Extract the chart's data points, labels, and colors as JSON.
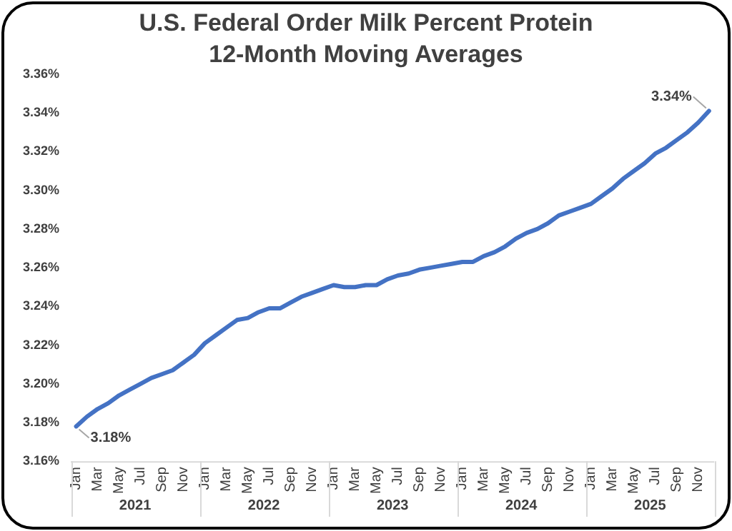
{
  "chart_data": {
    "type": "line",
    "title": "U.S. Federal Order Milk Percent Protein",
    "subtitle": "12-Month Moving Averages",
    "categories": [
      "Jan",
      null,
      "Mar",
      null,
      "May",
      null,
      "Jul",
      null,
      "Sep",
      null,
      "Nov",
      null,
      "Jan",
      null,
      "Mar",
      null,
      "May",
      null,
      "Jul",
      null,
      "Sep",
      null,
      "Nov",
      null,
      "Jan",
      null,
      "Mar",
      null,
      "May",
      null,
      "Jul",
      null,
      "Sep",
      null,
      "Nov",
      null,
      "Jan",
      null,
      "Mar",
      null,
      "May",
      null,
      "Jul",
      null,
      "Sep",
      null,
      "Nov",
      null,
      "Jan",
      null,
      "Mar",
      null,
      "May",
      null,
      "Jul",
      null,
      "Sep",
      null,
      "Nov",
      null
    ],
    "series": [
      {
        "color": "#4472c4",
        "values": [
          3.178,
          3.183,
          3.187,
          3.19,
          3.194,
          3.197,
          3.2,
          3.203,
          3.205,
          3.207,
          3.211,
          3.215,
          3.221,
          3.225,
          3.229,
          3.233,
          3.234,
          3.237,
          3.239,
          3.239,
          3.242,
          3.245,
          3.247,
          3.249,
          3.251,
          3.25,
          3.25,
          3.251,
          3.251,
          3.254,
          3.256,
          3.257,
          3.259,
          3.26,
          3.261,
          3.262,
          3.263,
          3.263,
          3.266,
          3.268,
          3.271,
          3.275,
          3.278,
          3.28,
          3.283,
          3.287,
          3.289,
          3.291,
          3.293,
          3.297,
          3.301,
          3.306,
          3.31,
          3.314,
          3.319,
          3.322,
          3.326,
          3.33,
          3.335,
          3.341
        ],
        "value_labels": [
          "3.18%",
          null,
          null,
          null,
          null,
          null,
          null,
          null,
          null,
          null,
          null,
          null,
          null,
          null,
          null,
          null,
          null,
          null,
          null,
          null,
          null,
          null,
          null,
          null,
          null,
          null,
          null,
          null,
          null,
          null,
          null,
          null,
          null,
          null,
          null,
          null,
          null,
          null,
          null,
          null,
          null,
          null,
          null,
          null,
          null,
          null,
          null,
          null,
          null,
          null,
          null,
          null,
          null,
          null,
          null,
          null,
          null,
          null,
          null,
          "3.34%"
        ]
      }
    ],
    "annotations": [
      "2021",
      "2022",
      "2023",
      "2024",
      "2025"
    ],
    "ylim": [
      3.16,
      3.36
    ],
    "yticks": [
      {
        "value": 3.16,
        "label": "3.16%"
      },
      {
        "value": 3.18,
        "label": "3.18%"
      },
      {
        "value": 3.2,
        "label": "3.20%"
      },
      {
        "value": 3.22,
        "label": "3.22%"
      },
      {
        "value": 3.24,
        "label": "3.24%"
      },
      {
        "value": 3.26,
        "label": "3.26%"
      },
      {
        "value": 3.28,
        "label": "3.28%"
      },
      {
        "value": 3.3,
        "label": "3.30%"
      },
      {
        "value": 3.32,
        "label": "3.32%"
      },
      {
        "value": 3.34,
        "label": "3.34%"
      },
      {
        "value": 3.36,
        "label": "3.36%"
      }
    ],
    "grid": false,
    "legend": false,
    "marker": "none",
    "line_style": "solid"
  }
}
